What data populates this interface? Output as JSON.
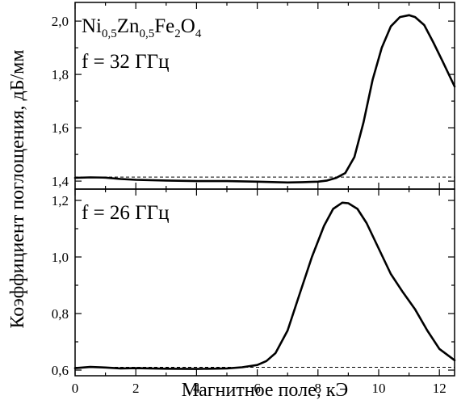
{
  "chart_data": {
    "type": "line",
    "xlabel": "Магнитное поле, кЭ",
    "ylabel": "Коэффициент поглощения, дБ/мм",
    "xlim": [
      0,
      12.5
    ],
    "x_ticks": [
      0,
      2,
      4,
      6,
      8,
      10,
      12
    ],
    "x_tick_labels": [
      "0",
      "2",
      "4",
      "6",
      "8",
      "10",
      "12"
    ],
    "grid": false,
    "panels": [
      {
        "annotation_parts": [
          {
            "text": "Ni",
            "sub": false
          },
          {
            "text": "0,5",
            "sub": true
          },
          {
            "text": "Zn",
            "sub": false
          },
          {
            "text": "0,5",
            "sub": true
          },
          {
            "text": "Fe",
            "sub": false
          },
          {
            "text": "2",
            "sub": true
          },
          {
            "text": "O",
            "sub": false
          },
          {
            "text": "4",
            "sub": true
          }
        ],
        "label": "f = 32 ГГц",
        "ylim": [
          1.37,
          2.07
        ],
        "y_ticks": [
          1.4,
          1.6,
          1.8,
          2.0
        ],
        "y_tick_labels": [
          "1,4",
          "1,6",
          "1,8",
          "2,0"
        ],
        "baseline": 1.415,
        "series": {
          "x": [
            0,
            0.5,
            1,
            1.5,
            2,
            3,
            4,
            5,
            6,
            7,
            7.5,
            8,
            8.3,
            8.6,
            8.9,
            9.2,
            9.5,
            9.8,
            10.1,
            10.4,
            10.7,
            11.0,
            11.2,
            11.5,
            11.8,
            12.1,
            12.5
          ],
          "y": [
            1.412,
            1.414,
            1.413,
            1.408,
            1.405,
            1.402,
            1.4,
            1.4,
            1.398,
            1.395,
            1.396,
            1.398,
            1.402,
            1.412,
            1.43,
            1.49,
            1.62,
            1.78,
            1.9,
            1.98,
            2.015,
            2.022,
            2.015,
            1.985,
            1.92,
            1.85,
            1.755
          ]
        }
      },
      {
        "label": "f = 26 ГГц",
        "ylim": [
          0.58,
          1.24
        ],
        "y_ticks": [
          0.6,
          0.8,
          1.0,
          1.2
        ],
        "y_tick_labels": [
          "0,6",
          "0,8",
          "1,0",
          "1,2"
        ],
        "baseline": 0.61,
        "series": {
          "x": [
            0,
            0.5,
            1,
            1.5,
            2,
            3,
            4,
            5,
            5.5,
            6,
            6.3,
            6.6,
            7,
            7.4,
            7.8,
            8.2,
            8.5,
            8.8,
            9.0,
            9.3,
            9.6,
            10,
            10.4,
            10.8,
            11.2,
            11.6,
            12.0,
            12.5
          ],
          "y": [
            0.607,
            0.611,
            0.609,
            0.606,
            0.607,
            0.605,
            0.604,
            0.606,
            0.61,
            0.618,
            0.632,
            0.66,
            0.74,
            0.87,
            1.0,
            1.11,
            1.17,
            1.192,
            1.19,
            1.17,
            1.12,
            1.03,
            0.94,
            0.875,
            0.815,
            0.74,
            0.675,
            0.635
          ]
        }
      }
    ]
  }
}
